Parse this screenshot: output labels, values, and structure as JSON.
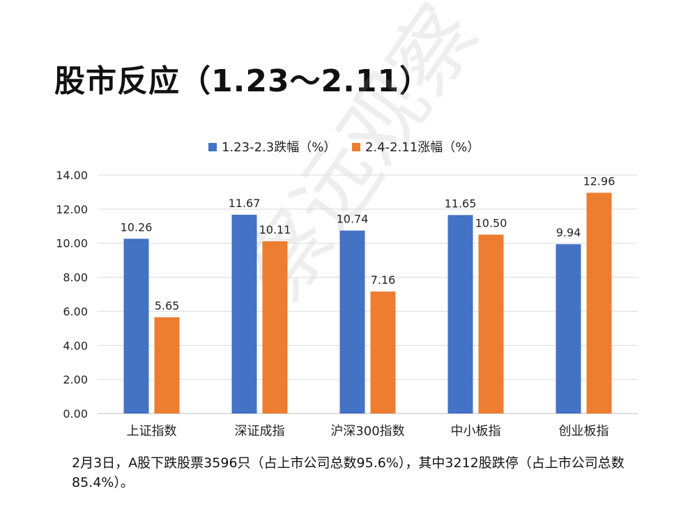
{
  "page": {
    "title": "股市反应（1.23～2.11）",
    "caption": "2月3日，A股下跌股票3596只（占上市公司总数95.6%），其中3212股跌停（占上市公司总数85.4%）。",
    "watermark": "察远观察"
  },
  "chart_data": {
    "type": "bar",
    "categories": [
      "上证指数",
      "深证成指",
      "沪深300指数",
      "中小板指",
      "创业板指"
    ],
    "series": [
      {
        "name": "1.23-2.3跌幅（%）",
        "color": "#4472C4",
        "values": [
          10.26,
          11.67,
          10.74,
          11.65,
          9.94
        ]
      },
      {
        "name": "2.4-2.11涨幅（%）",
        "color": "#ED7D31",
        "values": [
          5.65,
          10.11,
          7.16,
          10.5,
          12.96
        ]
      }
    ],
    "ylim": [
      0,
      14
    ],
    "yticks": [
      "0.00",
      "2.00",
      "4.00",
      "6.00",
      "8.00",
      "10.00",
      "12.00",
      "14.00"
    ],
    "grid": true,
    "legend": "top",
    "data_labels": [
      [
        "10.26",
        "11.67",
        "10.74",
        "11.65",
        "9.94"
      ],
      [
        "5.65",
        "10.11",
        "7.16",
        "10.50",
        "12.96"
      ]
    ]
  }
}
